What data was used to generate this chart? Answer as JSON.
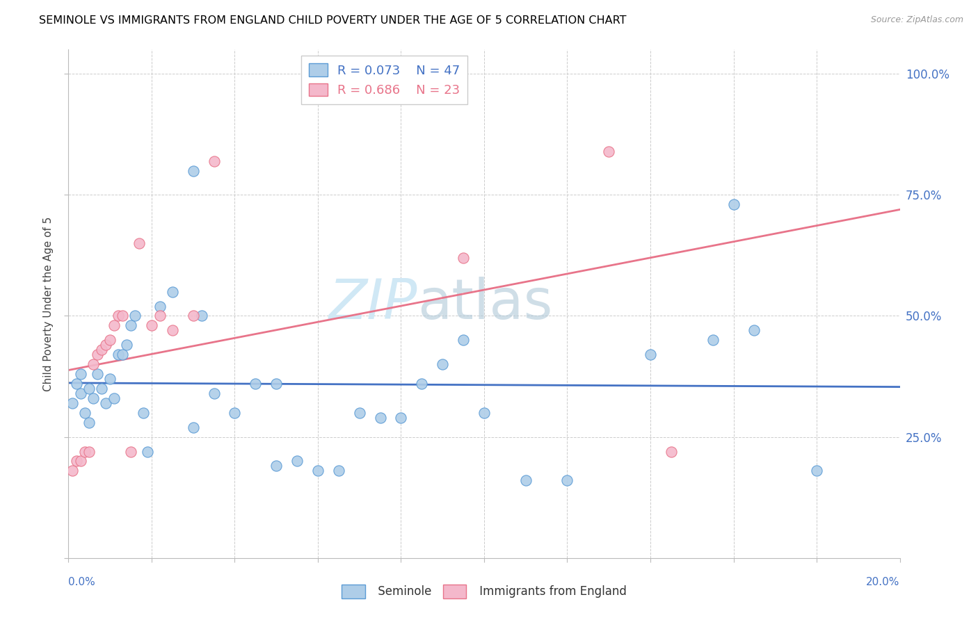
{
  "title": "SEMINOLE VS IMMIGRANTS FROM ENGLAND CHILD POVERTY UNDER THE AGE OF 5 CORRELATION CHART",
  "source": "Source: ZipAtlas.com",
  "ylabel": "Child Poverty Under the Age of 5",
  "yticks": [
    0.0,
    0.25,
    0.5,
    0.75,
    1.0
  ],
  "ytick_labels": [
    "",
    "25.0%",
    "50.0%",
    "75.0%",
    "100.0%"
  ],
  "legend_r1": "R = 0.073",
  "legend_n1": "N = 47",
  "legend_r2": "R = 0.686",
  "legend_n2": "N = 23",
  "blue_color": "#aecde8",
  "pink_color": "#f4b8cb",
  "blue_edge_color": "#5b9bd5",
  "pink_edge_color": "#e8748a",
  "blue_line_color": "#4472c4",
  "pink_line_color": "#e8748a",
  "watermark_color": "#d0e8f5",
  "seminole_x": [
    0.001,
    0.002,
    0.003,
    0.003,
    0.004,
    0.005,
    0.005,
    0.006,
    0.007,
    0.008,
    0.009,
    0.01,
    0.011,
    0.012,
    0.013,
    0.014,
    0.015,
    0.016,
    0.018,
    0.019,
    0.022,
    0.025,
    0.03,
    0.032,
    0.035,
    0.04,
    0.045,
    0.05,
    0.055,
    0.06,
    0.065,
    0.07,
    0.075,
    0.08,
    0.085,
    0.09,
    0.095,
    0.1,
    0.11,
    0.12,
    0.14,
    0.155,
    0.16,
    0.165,
    0.18,
    0.03,
    0.05
  ],
  "seminole_y": [
    0.32,
    0.36,
    0.38,
    0.34,
    0.3,
    0.35,
    0.28,
    0.33,
    0.38,
    0.35,
    0.32,
    0.37,
    0.33,
    0.42,
    0.42,
    0.44,
    0.48,
    0.5,
    0.3,
    0.22,
    0.52,
    0.55,
    0.8,
    0.5,
    0.34,
    0.3,
    0.36,
    0.36,
    0.2,
    0.18,
    0.18,
    0.3,
    0.29,
    0.29,
    0.36,
    0.4,
    0.45,
    0.3,
    0.16,
    0.16,
    0.42,
    0.45,
    0.73,
    0.47,
    0.18,
    0.27,
    0.19
  ],
  "england_x": [
    0.001,
    0.002,
    0.003,
    0.004,
    0.005,
    0.006,
    0.007,
    0.008,
    0.009,
    0.01,
    0.011,
    0.012,
    0.013,
    0.015,
    0.017,
    0.02,
    0.022,
    0.025,
    0.03,
    0.035,
    0.095,
    0.13,
    0.145
  ],
  "england_y": [
    0.18,
    0.2,
    0.2,
    0.22,
    0.22,
    0.4,
    0.42,
    0.43,
    0.44,
    0.45,
    0.48,
    0.5,
    0.5,
    0.22,
    0.65,
    0.48,
    0.5,
    0.47,
    0.5,
    0.82,
    0.62,
    0.84,
    0.22
  ]
}
